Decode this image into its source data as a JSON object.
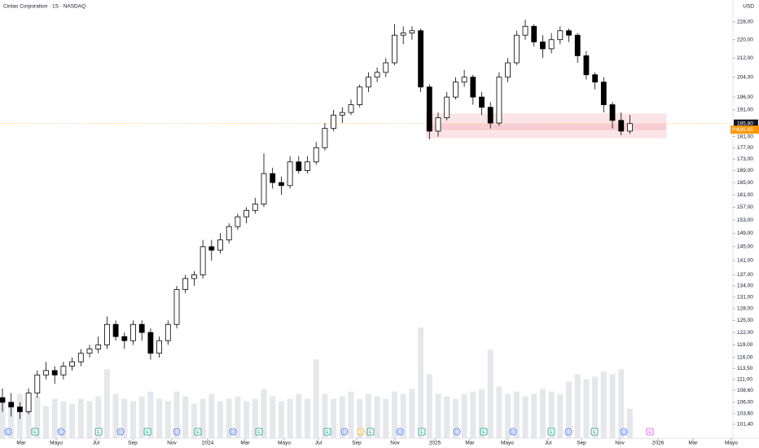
{
  "chart_data": {
    "type": "candlestick",
    "title": "Cintas Corporation · 1S · NASDAQ",
    "currency": "USD",
    "log_scale": true,
    "ylim": [
      98.6,
      238.3
    ],
    "yticks": [
      {
        "value": 228,
        "label": "228,00"
      },
      {
        "value": 220,
        "label": "220,00"
      },
      {
        "value": 212,
        "label": "212,00"
      },
      {
        "value": 204,
        "label": "204,00"
      },
      {
        "value": 196,
        "label": "196,00"
      },
      {
        "value": 191,
        "label": "191,00"
      },
      {
        "value": 181,
        "label": "181,00"
      },
      {
        "value": 177,
        "label": "177,00"
      },
      {
        "value": 173,
        "label": "173,00"
      },
      {
        "value": 169,
        "label": "169,00"
      },
      {
        "value": 165,
        "label": "165,00"
      },
      {
        "value": 161,
        "label": "161,00"
      },
      {
        "value": 157,
        "label": "157,00"
      },
      {
        "value": 153,
        "label": "153,00"
      },
      {
        "value": 149,
        "label": "149,00"
      },
      {
        "value": 145,
        "label": "145,00"
      },
      {
        "value": 141,
        "label": "141,00"
      },
      {
        "value": 137,
        "label": "137,00"
      },
      {
        "value": 134,
        "label": "134,00"
      },
      {
        "value": 131,
        "label": "131,00"
      },
      {
        "value": 128,
        "label": "128,00"
      },
      {
        "value": 125,
        "label": "125,00"
      },
      {
        "value": 122,
        "label": "122,00"
      },
      {
        "value": 119,
        "label": "119,00"
      },
      {
        "value": 116,
        "label": "116,00"
      },
      {
        "value": 113.5,
        "label": "113,50"
      },
      {
        "value": 111,
        "label": "111,00"
      },
      {
        "value": 108.6,
        "label": "108,60"
      },
      {
        "value": 106,
        "label": "106,00"
      },
      {
        "value": 103.6,
        "label": "103,60"
      },
      {
        "value": 101.4,
        "label": "101,40"
      }
    ],
    "xlim": [
      -0.28,
      83.83
    ],
    "xticks": [
      {
        "value": 2.15,
        "label": "Mar"
      },
      {
        "value": 6.17,
        "label": "Mayo"
      },
      {
        "value": 10.75,
        "label": "Jul"
      },
      {
        "value": 14.95,
        "label": "Sep"
      },
      {
        "value": 19.44,
        "label": "Nov"
      },
      {
        "value": 23.55,
        "label": "2024"
      },
      {
        "value": 27.85,
        "label": "Mar"
      },
      {
        "value": 32.34,
        "label": "Mayo"
      },
      {
        "value": 36.26,
        "label": "Jul"
      },
      {
        "value": 40.65,
        "label": "Sep"
      },
      {
        "value": 45.05,
        "label": "Nov"
      },
      {
        "value": 49.63,
        "label": "2025"
      },
      {
        "value": 53.64,
        "label": "Mar"
      },
      {
        "value": 57.94,
        "label": "Mayo"
      },
      {
        "value": 62.62,
        "label": "Jul"
      },
      {
        "value": 66.45,
        "label": "Sep"
      },
      {
        "value": 70.84,
        "label": "Nov"
      },
      {
        "value": 75.23,
        "label": "2026"
      },
      {
        "value": 79.25,
        "label": "Mar"
      },
      {
        "value": 83.64,
        "label": "Mayo"
      }
    ],
    "open": [
      107,
      106,
      105,
      104,
      108,
      112,
      113,
      112,
      114,
      115,
      117,
      118,
      119,
      124,
      121,
      120,
      124,
      122,
      117,
      120,
      124,
      133,
      136,
      137,
      145,
      144,
      147,
      151,
      154,
      156,
      158,
      168,
      165,
      164,
      172,
      169,
      172,
      177,
      184,
      189,
      190,
      193,
      200,
      204,
      206,
      210,
      222,
      223,
      224,
      200,
      183,
      188,
      196,
      202,
      204,
      196,
      192,
      186,
      204,
      210,
      222,
      226,
      219,
      216,
      220,
      224,
      222,
      213,
      205,
      202,
      193,
      187,
      183
    ],
    "high": [
      109,
      108,
      106,
      109,
      113,
      115,
      114,
      115,
      116,
      118,
      119,
      121,
      126,
      125,
      122,
      125,
      125,
      123,
      121,
      125,
      134,
      137,
      138,
      147,
      147,
      149,
      152,
      155,
      157,
      160,
      175,
      170,
      167,
      174,
      174,
      174,
      179,
      186,
      191,
      192,
      195,
      201,
      206,
      208,
      212,
      227,
      226,
      226,
      225,
      201,
      190,
      198,
      204,
      207,
      205,
      198,
      194,
      206,
      212,
      224,
      229,
      227,
      222,
      223,
      226,
      225,
      223,
      215,
      206,
      204,
      194,
      190,
      189
    ],
    "low": [
      104,
      103,
      102.5,
      103.5,
      107,
      111,
      110,
      111,
      113,
      114,
      116,
      117,
      118,
      120,
      118,
      119,
      120,
      115.5,
      116,
      119,
      123,
      132,
      134,
      136,
      141,
      143,
      146,
      150,
      152,
      155,
      157,
      163,
      161,
      163,
      168,
      168,
      171,
      176,
      183,
      186,
      189,
      192,
      198,
      202,
      204,
      209,
      218,
      220,
      198,
      180,
      181,
      187,
      195,
      200,
      193,
      189,
      184,
      185,
      202,
      209,
      220,
      217,
      212,
      214,
      218,
      219,
      210,
      203,
      199,
      190,
      184,
      181.5,
      182
    ],
    "close": [
      106,
      105,
      104,
      108,
      112,
      113,
      112,
      114,
      115,
      117,
      118,
      119,
      124,
      121,
      120,
      124,
      122,
      117,
      120,
      124,
      133,
      136,
      137,
      145,
      144,
      147,
      151,
      154,
      156,
      158,
      168,
      165,
      164,
      172,
      169,
      172,
      177,
      184,
      189,
      190,
      193,
      200,
      204,
      206,
      210,
      222,
      223,
      224,
      200,
      183,
      188,
      196,
      202,
      204,
      196,
      192,
      186,
      204,
      210,
      222,
      226,
      219,
      216,
      220,
      224,
      222,
      213,
      205,
      202,
      193,
      187,
      183,
      185.8
    ],
    "volume": [
      1.6,
      1.4,
      1.8,
      1.5,
      1.7,
      1.3,
      1.6,
      1.5,
      1.4,
      1.6,
      1.5,
      1.7,
      2.8,
      1.8,
      1.6,
      1.5,
      1.7,
      1.9,
      1.6,
      1.5,
      1.9,
      1.7,
      1.4,
      1.6,
      1.8,
      1.5,
      1.6,
      1.7,
      1.5,
      1.6,
      2.0,
      1.7,
      1.5,
      1.6,
      1.8,
      1.6,
      3.2,
      1.8,
      1.6,
      1.7,
      1.9,
      1.6,
      1.8,
      1.7,
      1.6,
      1.9,
      1.8,
      2.0,
      4.5,
      2.6,
      1.8,
      1.7,
      1.6,
      1.8,
      1.9,
      2.0,
      3.6,
      2.1,
      1.8,
      1.9,
      1.7,
      1.8,
      2.0,
      1.9,
      1.8,
      2.3,
      2.6,
      2.4,
      2.5,
      2.7,
      2.6,
      2.8,
      1.2
    ],
    "zone": {
      "low": 180.5,
      "high": 189.5,
      "inner_low": 183.4,
      "inner_high": 185.6,
      "start": 49
    },
    "last_price": {
      "value": 185.8,
      "label": "185,80"
    },
    "pre_market": {
      "tag": "Pre",
      "value": 185.65,
      "label": "185,65"
    },
    "events": [
      {
        "x": 0.65,
        "label": "D",
        "color": "#2962ff"
      },
      {
        "x": 3.74,
        "label": "E",
        "color": "#089981"
      },
      {
        "x": 6.73,
        "label": "D",
        "color": "#2962ff"
      },
      {
        "x": 11.03,
        "label": "E",
        "color": "#089981"
      },
      {
        "x": 13.55,
        "label": "D",
        "color": "#2962ff"
      },
      {
        "x": 16.64,
        "label": "E",
        "color": "#089981"
      },
      {
        "x": 20.0,
        "label": "D",
        "color": "#2962ff"
      },
      {
        "x": 22.43,
        "label": "E",
        "color": "#089981"
      },
      {
        "x": 26.45,
        "label": "D",
        "color": "#2962ff"
      },
      {
        "x": 29.44,
        "label": "E",
        "color": "#089981"
      },
      {
        "x": 37.29,
        "label": "E",
        "color": "#089981"
      },
      {
        "x": 39.25,
        "label": "D",
        "color": "#2962ff"
      },
      {
        "x": 41.12,
        "label": "S",
        "color": "#ff9800"
      },
      {
        "x": 42.24,
        "label": "E",
        "color": "#089981"
      },
      {
        "x": 45.61,
        "label": "D",
        "color": "#2962ff"
      },
      {
        "x": 48.13,
        "label": "E",
        "color": "#089981"
      },
      {
        "x": 52.15,
        "label": "D",
        "color": "#2962ff"
      },
      {
        "x": 55.23,
        "label": "E",
        "color": "#089981"
      },
      {
        "x": 58.6,
        "label": "D",
        "color": "#2962ff"
      },
      {
        "x": 62.99,
        "label": "E",
        "color": "#089981"
      },
      {
        "x": 64.95,
        "label": "D",
        "color": "#2962ff"
      },
      {
        "x": 67.94,
        "label": "E",
        "color": "#089981"
      },
      {
        "x": 71.31,
        "label": "D",
        "color": "#2962ff"
      },
      {
        "x": 74.3,
        "label": "E",
        "color": "#e040fb"
      }
    ]
  }
}
